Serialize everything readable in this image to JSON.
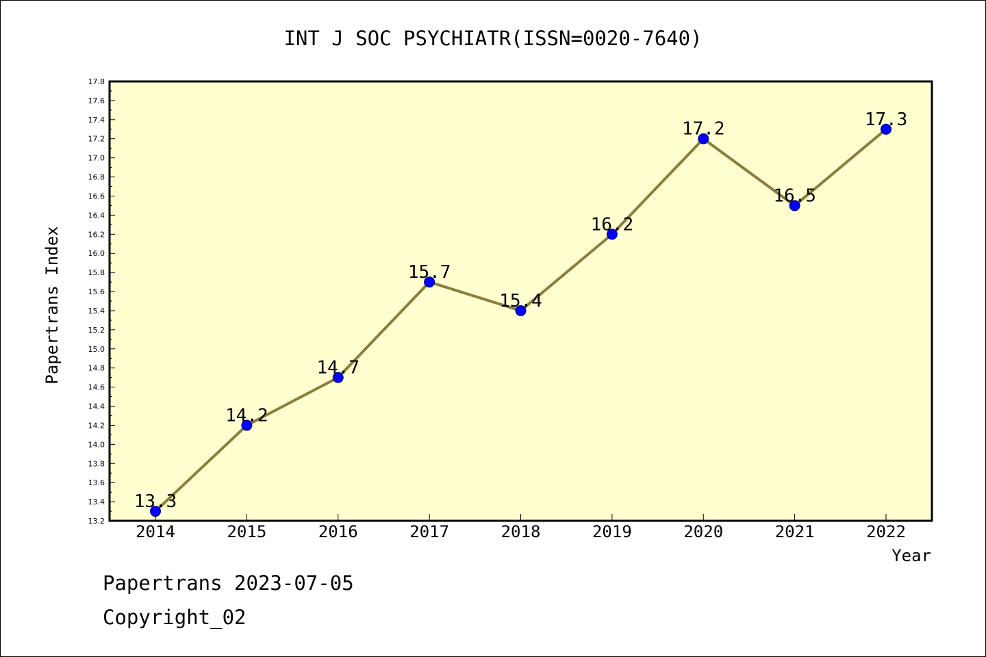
{
  "chart_data": {
    "type": "line",
    "title": "INT J SOC PSYCHIATR(ISSN=0020-7640)",
    "xlabel": "Year",
    "ylabel": "Papertrans Index",
    "categories": [
      "2014",
      "2015",
      "2016",
      "2017",
      "2018",
      "2019",
      "2020",
      "2021",
      "2022"
    ],
    "values": [
      13.3,
      14.2,
      14.7,
      15.7,
      15.4,
      16.2,
      17.2,
      16.5,
      17.3
    ],
    "data_labels": [
      "13.3",
      "14.2",
      "14.7",
      "15.7",
      "15.4",
      "16.2",
      "17.2",
      "16.5",
      "17.3"
    ],
    "ylim": [
      13.2,
      17.8
    ],
    "yticks": [
      "13.2",
      "13.4",
      "13.6",
      "13.8",
      "14.0",
      "14.2",
      "14.4",
      "14.6",
      "14.8",
      "15.0",
      "15.2",
      "15.4",
      "15.6",
      "15.8",
      "16.0",
      "16.2",
      "16.4",
      "16.6",
      "16.8",
      "17.0",
      "17.2",
      "17.4",
      "17.6",
      "17.8"
    ],
    "grid": false,
    "line_color": "#8b7d3a",
    "marker_color": "#0000ff",
    "plot_background": "#ffffd0"
  },
  "footer": {
    "line1": "Papertrans 2023-07-05",
    "line2": "Copyright_02"
  }
}
